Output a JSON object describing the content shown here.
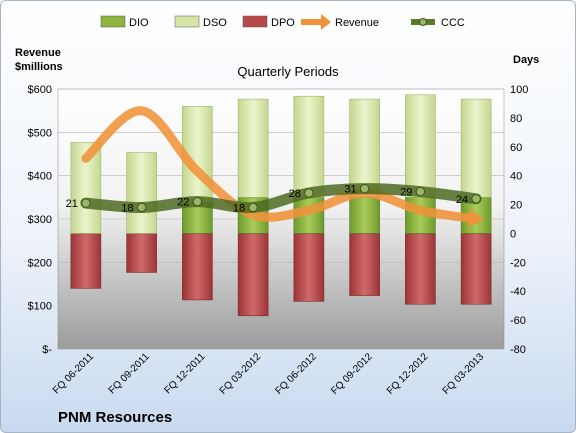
{
  "chart_data": {
    "type": "bar",
    "subtitle": "Quarterly Periods",
    "company": "PNM Resources",
    "left_axis_title": [
      "Revenue",
      "$millions"
    ],
    "right_axis_title": "Days",
    "left_ticks": [
      "$600",
      "$500",
      "$400",
      "$300",
      "$200",
      "$100",
      "$-"
    ],
    "right_ticks": [
      "100",
      "80",
      "60",
      "40",
      "20",
      "0",
      "-20",
      "-40",
      "-60",
      "-80"
    ],
    "left_range": [
      0,
      600
    ],
    "right_range": [
      -80,
      100
    ],
    "categories": [
      "FQ 06-2011",
      "FQ 09-2011",
      "FQ 12-2011",
      "FQ 03-2012",
      "FQ 06-2012",
      "FQ 09-2012",
      "FQ 12-2012",
      "FQ 03-2013"
    ],
    "series": [
      {
        "name": "DIO",
        "values": [
          0,
          0,
          22,
          25,
          25,
          25,
          25,
          25
        ],
        "color": "#8fb43e"
      },
      {
        "name": "DSO",
        "values": [
          63,
          56,
          66,
          68,
          70,
          68,
          71,
          68
        ],
        "color": "#d6e6a8"
      },
      {
        "name": "DPO",
        "values": [
          -38,
          -27,
          -46,
          -57,
          -47,
          -43,
          -49,
          -49
        ],
        "color": "#b9484a"
      },
      {
        "name": "Revenue",
        "values": [
          440,
          550,
          410,
          310,
          320,
          360,
          320,
          300
        ],
        "color": "#f0923a"
      },
      {
        "name": "CCC",
        "values": [
          21,
          18,
          22,
          18,
          28,
          31,
          29,
          24
        ],
        "color": "#5d7a2a"
      }
    ],
    "grid": true,
    "legend_position": "top"
  }
}
